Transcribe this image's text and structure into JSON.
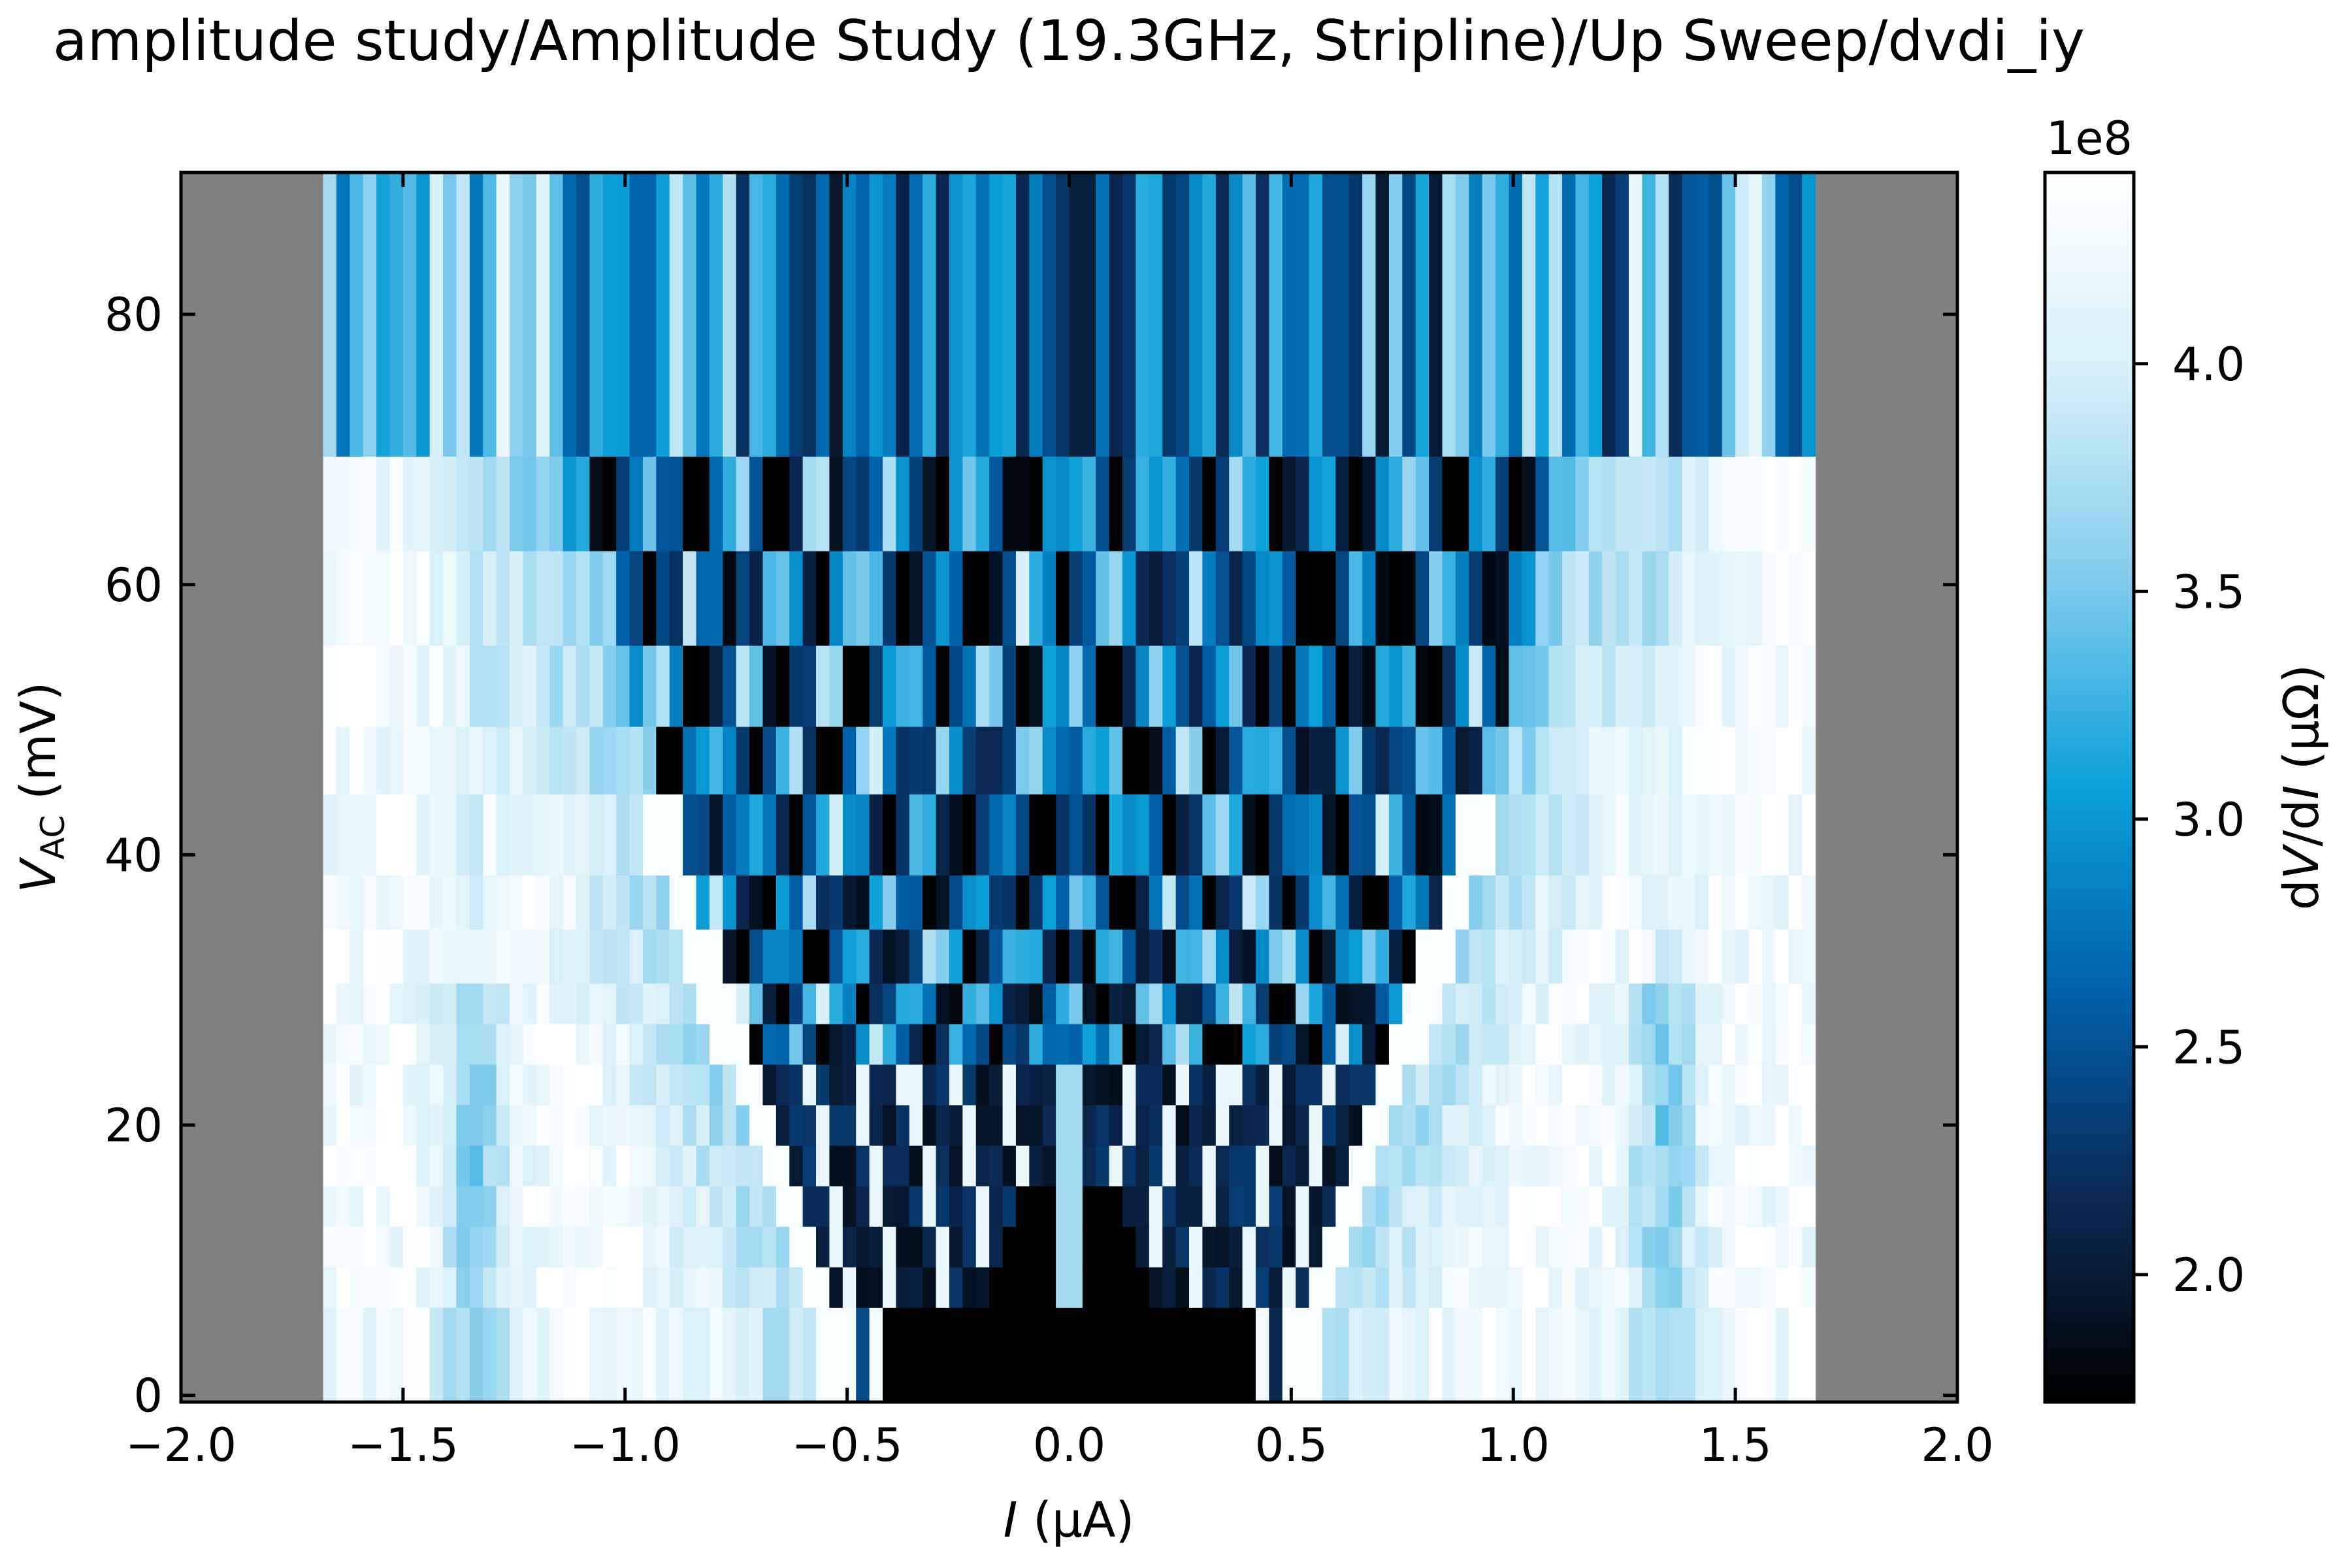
{
  "chart_data": {
    "type": "heatmap",
    "title": "amplitude study/Amplitude Study (19.3GHz, Stripline)/Up Sweep/dvdi_iy",
    "xlabel": {
      "var": "I",
      "unit": " (μA)"
    },
    "ylabel": {
      "var": "V",
      "sub": "AC",
      "unit": " (mV)"
    },
    "xlim": [
      -2.0,
      2.0
    ],
    "ylim": [
      -0.5,
      90.5
    ],
    "x_ticks": [
      "−2.0",
      "−1.5",
      "−1.0",
      "−0.5",
      "0.0",
      "0.5",
      "1.0",
      "1.5",
      "2.0"
    ],
    "x_tick_values": [
      -2.0,
      -1.5,
      -1.0,
      -0.5,
      0.0,
      0.5,
      1.0,
      1.5,
      2.0
    ],
    "y_ticks": [
      "0",
      "20",
      "40",
      "60",
      "80"
    ],
    "y_tick_values": [
      0,
      20,
      40,
      60,
      80
    ],
    "data_x_range": [
      -1.68,
      1.68
    ],
    "y_bands": [
      [
        -0.5,
        6.5
      ],
      [
        6.5,
        9.5
      ],
      [
        9.5,
        12.5
      ],
      [
        12.5,
        15.5
      ],
      [
        15.5,
        18.5
      ],
      [
        18.5,
        21.5
      ],
      [
        21.5,
        24.5
      ],
      [
        24.5,
        27.5
      ],
      [
        27.5,
        30.5
      ],
      [
        30.5,
        34.5
      ],
      [
        34.5,
        38.5
      ],
      [
        38.5,
        44.5
      ],
      [
        44.5,
        49.5
      ],
      [
        49.5,
        55.5
      ],
      [
        55.5,
        62.5
      ],
      [
        62.5,
        69.5
      ],
      [
        69.5,
        90.5
      ]
    ],
    "colorbar": {
      "label": {
        "pre": "d",
        "var1": "V",
        "mid": "/d",
        "var2": "I",
        "unit": " (μΩ)"
      },
      "exponent": "1e8",
      "range": [
        1.72,
        4.42
      ],
      "ticks": [
        "2.0",
        "2.5",
        "3.0",
        "3.5",
        "4.0"
      ],
      "tick_values": [
        2.0,
        2.5,
        3.0,
        3.5,
        4.0
      ],
      "colormap": [
        "#000000",
        "#0a2a55",
        "#0060a8",
        "#0aa0d8",
        "#7fcbec",
        "#d4eff9",
        "#ffffff"
      ]
    },
    "background_color": "#808080",
    "grid": false
  }
}
